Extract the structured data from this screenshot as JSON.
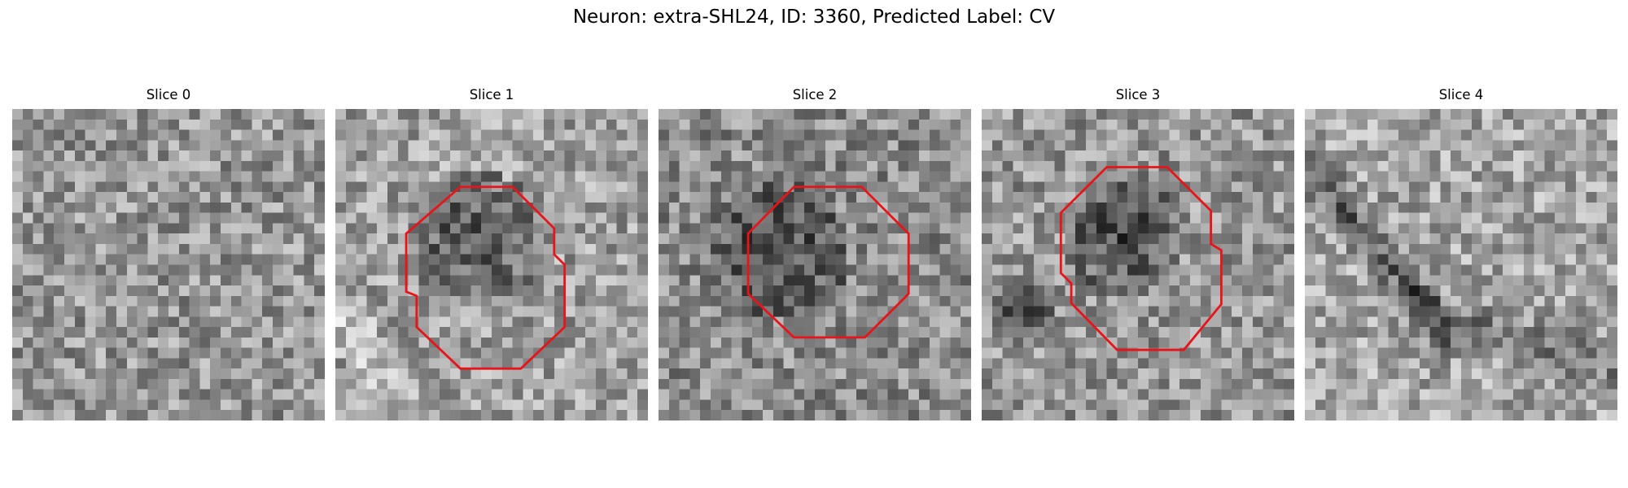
{
  "figure": {
    "title": "Neuron: extra-SHL24, ID: 3360, Predicted Label: CV"
  },
  "slices": [
    {
      "label": "Slice 0",
      "has_outline": false
    },
    {
      "label": "Slice 1",
      "has_outline": true
    },
    {
      "label": "Slice 2",
      "has_outline": true
    },
    {
      "label": "Slice 3",
      "has_outline": true
    },
    {
      "label": "Slice 4",
      "has_outline": false
    }
  ],
  "colors": {
    "outline": "#e8141a",
    "background": "#ffffff"
  }
}
